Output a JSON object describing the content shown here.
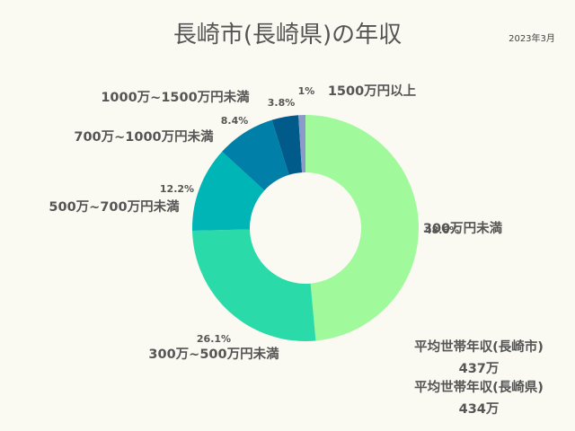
{
  "chart_data": {
    "type": "pie",
    "title": "長崎市(長崎県)の年収",
    "date": "2023年3月",
    "slices": [
      {
        "category": "300万円未満",
        "value": 48.6,
        "pct_label": "48.6%",
        "color": "#a0f99a"
      },
      {
        "category": "300万~500万円未満",
        "value": 26.1,
        "pct_label": "26.1%",
        "color": "#2adba9"
      },
      {
        "category": "500万~700万円未満",
        "value": 12.2,
        "pct_label": "12.2%",
        "color": "#00b5b5"
      },
      {
        "category": "700万~1000万円未満",
        "value": 8.4,
        "pct_label": "8.4%",
        "color": "#0080a8"
      },
      {
        "category": "1000万~1500万円未満",
        "value": 3.8,
        "pct_label": "3.8%",
        "color": "#005a8a"
      },
      {
        "category": "1500万円以上",
        "value": 1.0,
        "pct_label": "1%",
        "color": "#8a9bc9"
      }
    ]
  },
  "averages": [
    {
      "label": "平均世帯年収(長崎市)",
      "value": "437万"
    },
    {
      "label": "平均世帯年収(長崎県)",
      "value": "434万"
    }
  ]
}
